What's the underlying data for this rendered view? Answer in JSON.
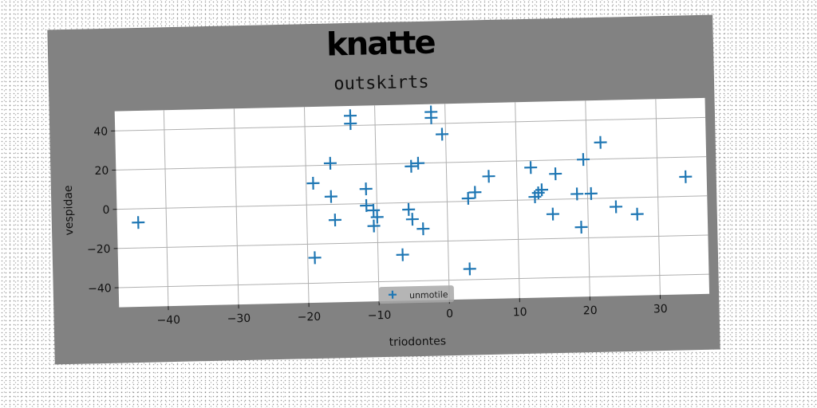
{
  "chart_data": {
    "type": "scatter",
    "suptitle": "knatte",
    "title": "outskirts",
    "xlabel": "triodontes",
    "ylabel": "vespidae",
    "xlim": [
      -47,
      37
    ],
    "ylim": [
      -50,
      50
    ],
    "xticks": [
      -40,
      -30,
      -20,
      -10,
      0,
      10,
      20,
      30
    ],
    "yticks": [
      -40,
      -20,
      0,
      20,
      40
    ],
    "grid": true,
    "legend": "lower-center",
    "marker": "+",
    "color": "#1f77b4",
    "series": [
      {
        "name": "unmotile",
        "points": [
          [
            -44,
            -7
          ],
          [
            -19,
            11
          ],
          [
            -19,
            -27
          ],
          [
            -16.5,
            21
          ],
          [
            -16.5,
            4
          ],
          [
            -16,
            -8
          ],
          [
            -13.5,
            45
          ],
          [
            -13.5,
            41
          ],
          [
            -11.5,
            7.5
          ],
          [
            -11.5,
            -1
          ],
          [
            -10.5,
            -3.5
          ],
          [
            -10.5,
            -11.5
          ],
          [
            -10,
            -7
          ],
          [
            -6.5,
            -26.5
          ],
          [
            -5.5,
            -3.5
          ],
          [
            -5,
            18.5
          ],
          [
            -5,
            -8.5
          ],
          [
            -4,
            20
          ],
          [
            -3.5,
            -13.5
          ],
          [
            -2,
            46
          ],
          [
            -2,
            43
          ],
          [
            -0.5,
            34.5
          ],
          [
            3,
            1.5
          ],
          [
            3,
            -34.5
          ],
          [
            4,
            4.5
          ],
          [
            6,
            12.5
          ],
          [
            12,
            16.5
          ],
          [
            12.5,
            1.5
          ],
          [
            13,
            3.5
          ],
          [
            13.5,
            5
          ],
          [
            15,
            -7.5
          ],
          [
            15.5,
            13
          ],
          [
            18.5,
            2.5
          ],
          [
            19,
            -14.5
          ],
          [
            19.5,
            20
          ],
          [
            20.5,
            2.5
          ],
          [
            22,
            28.5
          ],
          [
            24,
            -4.5
          ],
          [
            27,
            -8.5
          ],
          [
            34,
            10
          ]
        ]
      }
    ]
  }
}
